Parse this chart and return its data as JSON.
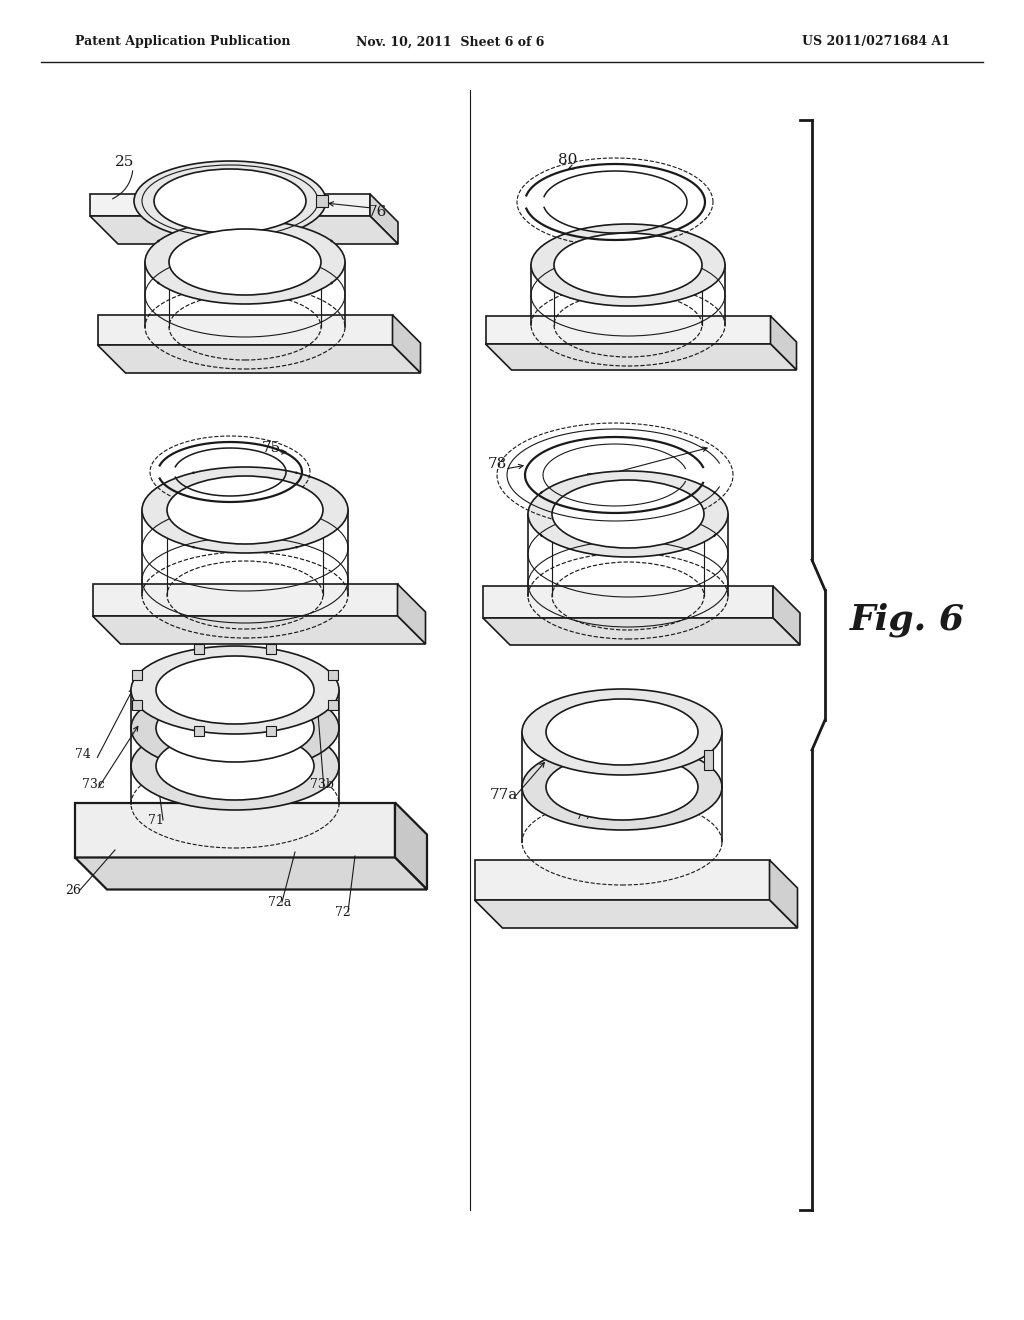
{
  "bg_color": "#ffffff",
  "line_color": "#1a1a1a",
  "header_left": "Patent Application Publication",
  "header_center": "Nov. 10, 2011  Sheet 6 of 6",
  "header_right": "US 2011/0271684 A1",
  "fig_label": "Fig. 6"
}
